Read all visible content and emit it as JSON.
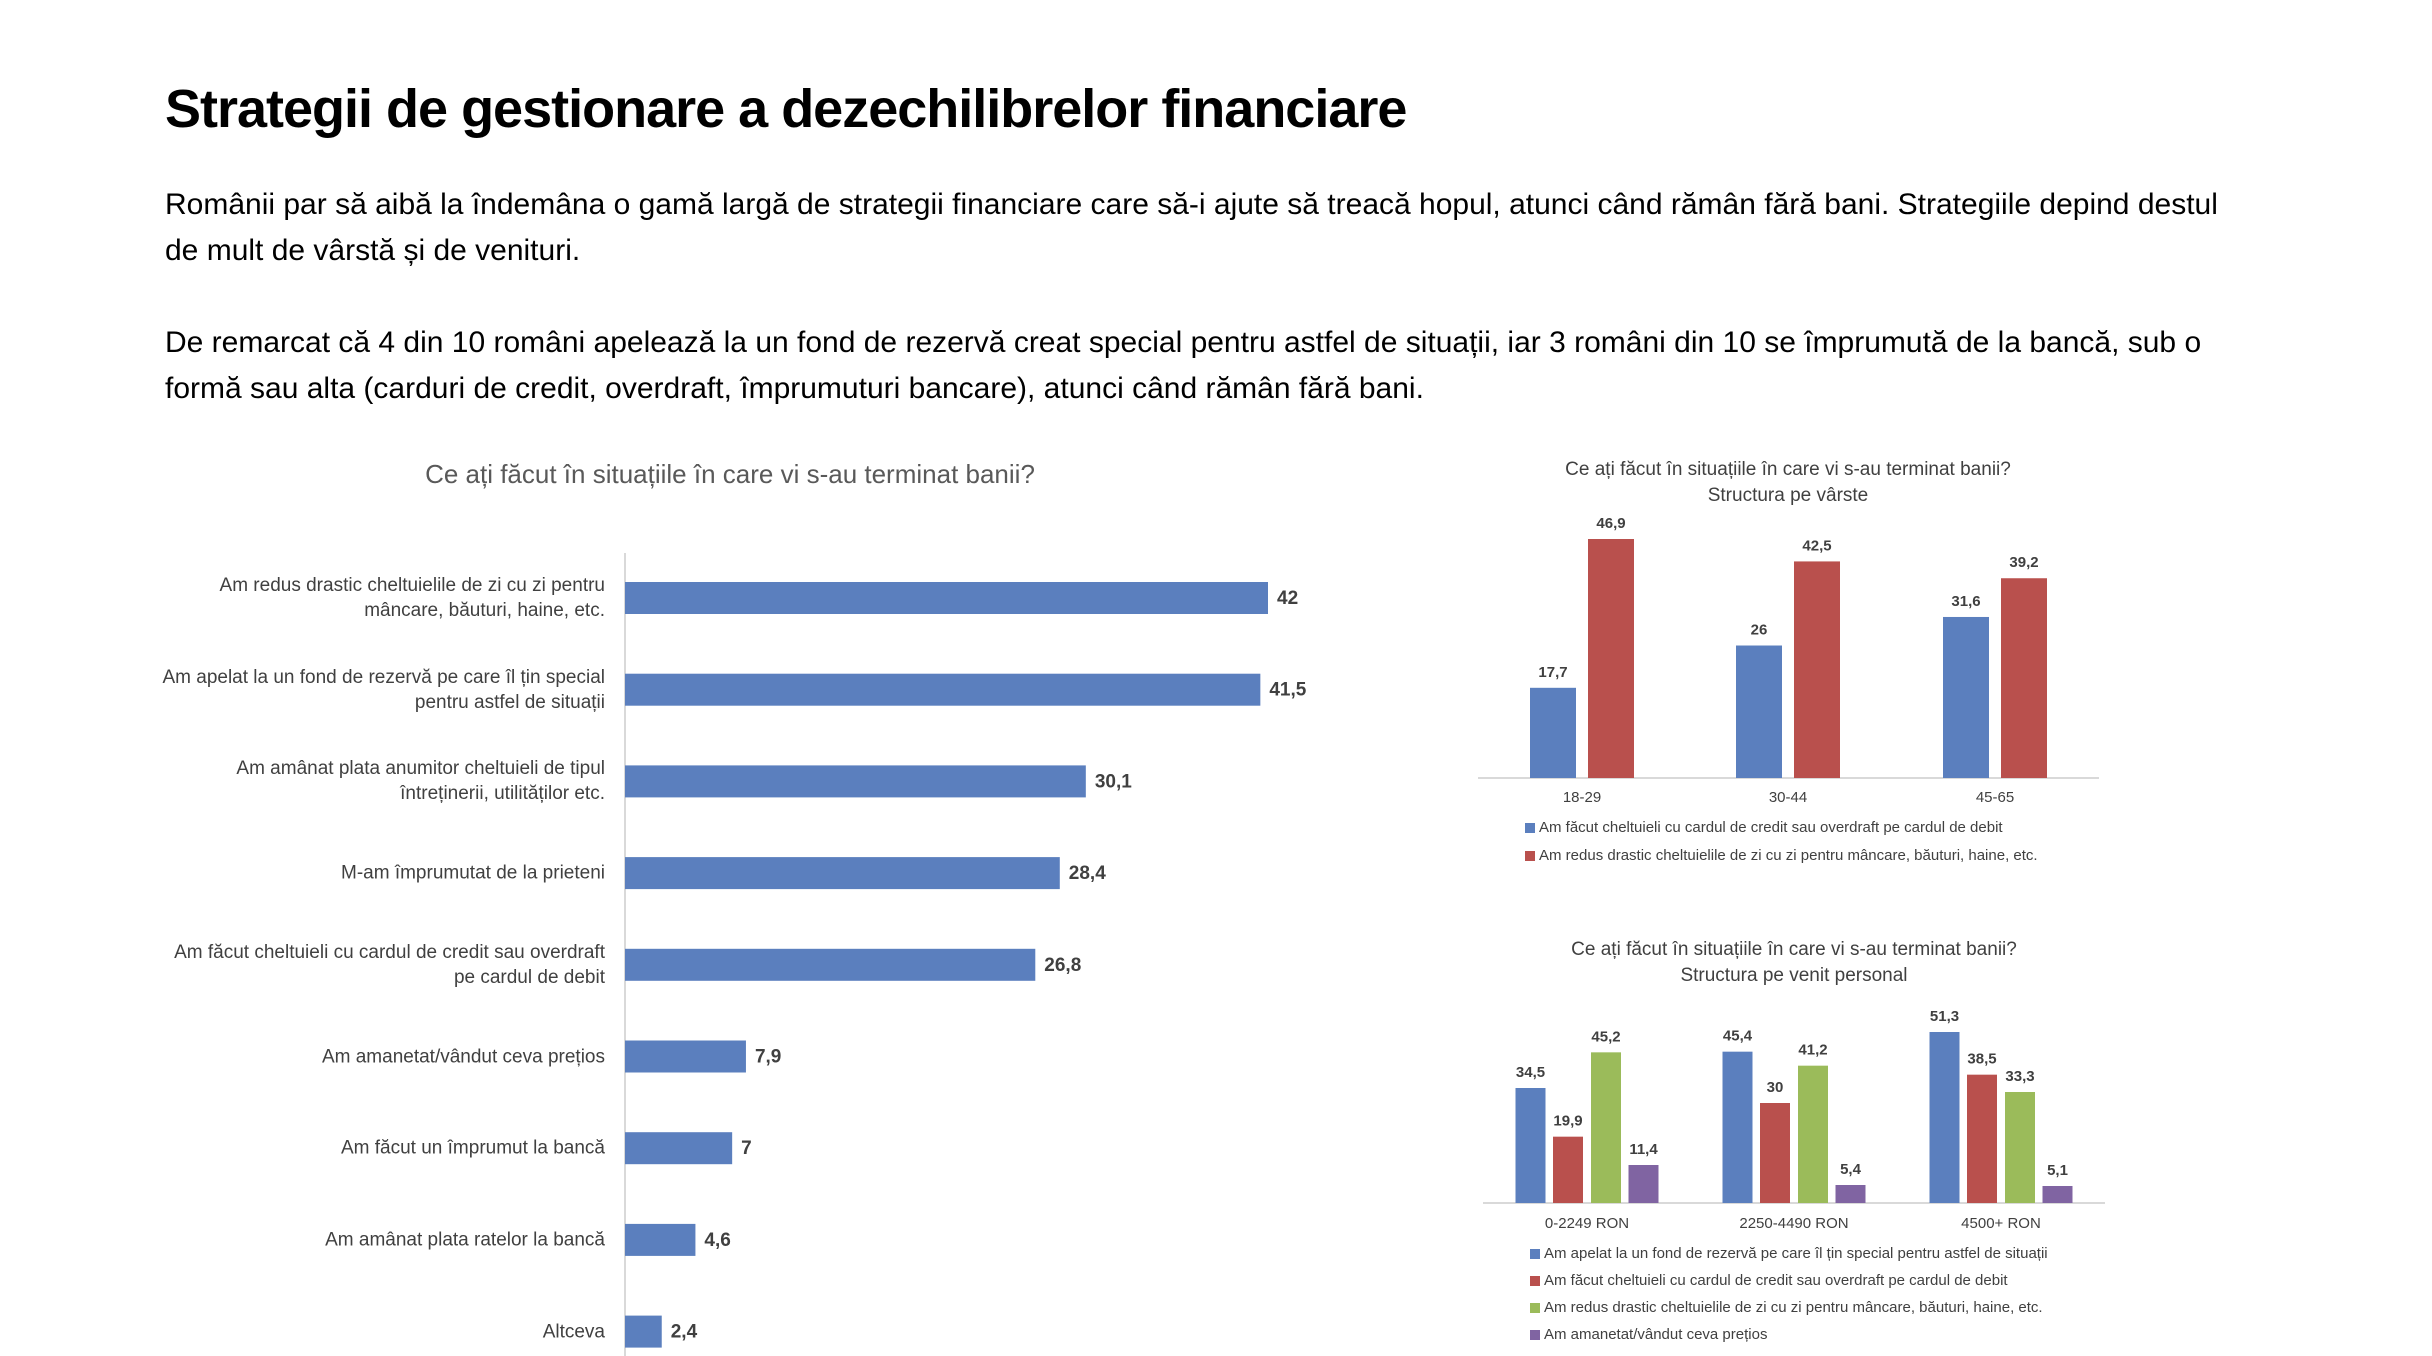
{
  "title": "Strategii de gestionare a dezechilibrelor financiare",
  "paragraphs": [
    "Românii par să aibă la îndemâna o gamă largă de strategii financiare care să-i ajute să treacă hopul, atunci când rămân fără bani. Strategiile depind destul de mult de vârstă și de venituri.",
    "De remarcat că 4 din 10 români apelează la un fond de rezervă creat special pentru astfel de situații, iar 3 români din 10 se împrumută de la bancă, sub o formă sau alta (carduri de credit, overdraft, împrumuturi bancare), atunci când rămân fără bani."
  ],
  "chart_data": [
    {
      "type": "barh",
      "title": "Ce ați făcut în situațiile în care vi s-au terminat banii?",
      "categories": [
        "Am redus drastic cheltuielile de zi cu zi pentru mâncare, băuturi, haine, etc.",
        "Am apelat la un fond de rezervă pe care îl țin special pentru astfel de situații",
        "Am amânat plata anumitor cheltuieli de tipul întreținerii, utilităților etc.",
        "M-am împrumutat de la prieteni",
        "Am făcut cheltuieli cu cardul de credit sau overdraft pe cardul de debit",
        "Am amanetat/vândut ceva prețios",
        "Am făcut un împrumut la bancă",
        "Am amânat plata ratelor la bancă",
        "Altceva"
      ],
      "values": [
        42,
        41.5,
        30.1,
        28.4,
        26.8,
        7.9,
        7,
        4.6,
        2.4
      ],
      "value_labels": [
        "42",
        "41,5",
        "30,1",
        "28,4",
        "26,8",
        "7,9",
        "7",
        "4,6",
        "2,4"
      ],
      "color": "#5b7fbe"
    },
    {
      "type": "bar",
      "title": "Ce ați făcut în situațiile în care vi s-au terminat banii?",
      "subtitle": "Structura pe vârste",
      "categories": [
        "18-29",
        "30-44",
        "45-65"
      ],
      "series": [
        {
          "name": "Am făcut cheltuieli cu cardul de credit sau overdraft pe cardul de debit",
          "color": "#5b7fbe",
          "values": [
            17.7,
            26,
            31.6
          ],
          "value_labels": [
            "17,7",
            "26",
            "31,6"
          ]
        },
        {
          "name": "Am redus drastic cheltuielile de zi cu zi pentru mâncare, băuturi, haine, etc.",
          "color": "#b9504d",
          "values": [
            46.9,
            42.5,
            39.2
          ],
          "value_labels": [
            "46,9",
            "42,5",
            "39,2"
          ]
        }
      ]
    },
    {
      "type": "bar",
      "title": "Ce ați făcut în situațiile în care vi s-au terminat banii?",
      "subtitle": "Structura pe venit personal",
      "categories": [
        "0-2249 RON",
        "2250-4490 RON",
        "4500+ RON"
      ],
      "series": [
        {
          "name": "Am apelat la un fond de rezervă pe care îl țin special pentru astfel de situații",
          "color": "#5b7fbe",
          "values": [
            34.5,
            45.4,
            51.3
          ],
          "value_labels": [
            "34,5",
            "45,4",
            "51,3"
          ]
        },
        {
          "name": "Am făcut cheltuieli cu cardul de credit sau overdraft pe cardul de debit",
          "color": "#b9504d",
          "values": [
            19.9,
            30,
            38.5
          ],
          "value_labels": [
            "19,9",
            "30",
            "38,5"
          ]
        },
        {
          "name": "Am redus drastic cheltuielile de zi cu zi pentru mâncare, băuturi, haine, etc.",
          "color": "#9bbb5a",
          "values": [
            45.2,
            41.2,
            33.3
          ],
          "value_labels": [
            "45,2",
            "41,2",
            "33,3"
          ]
        },
        {
          "name": "Am amanetat/vândut ceva prețios",
          "color": "#8064a2",
          "values": [
            11.4,
            5.4,
            5.1
          ],
          "value_labels": [
            "11,4",
            "5,4",
            "5,1"
          ]
        }
      ]
    }
  ]
}
